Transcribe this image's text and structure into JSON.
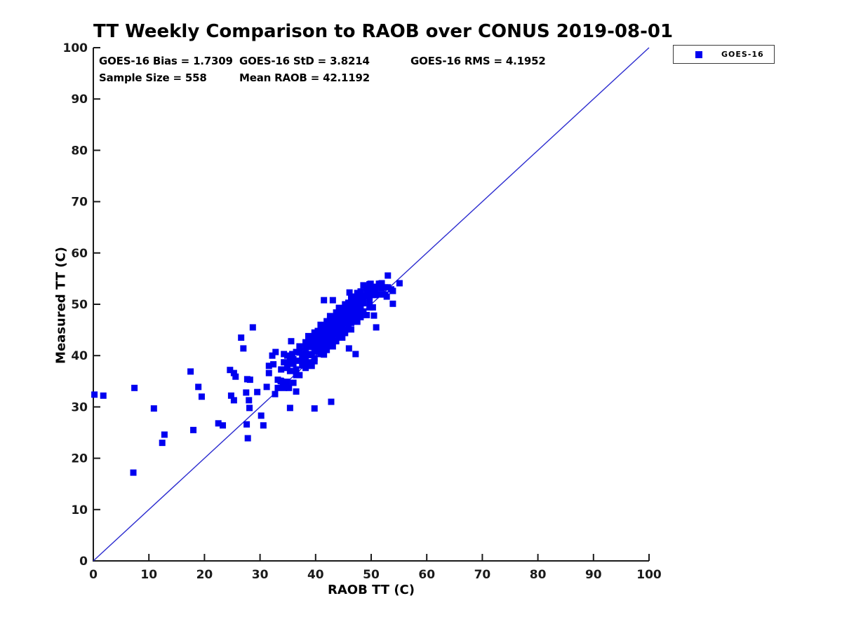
{
  "chart_data": {
    "type": "scatter",
    "title": "TT Weekly Comparison to RAOB over CONUS 2019-08-01",
    "xlabel": "RAOB TT (C)",
    "ylabel": "Measured TT (C)",
    "xlim": [
      0,
      100
    ],
    "ylim": [
      0,
      100
    ],
    "xticks": [
      0,
      10,
      20,
      30,
      40,
      50,
      60,
      70,
      80,
      90,
      100
    ],
    "yticks": [
      0,
      10,
      20,
      30,
      40,
      50,
      60,
      70,
      80,
      90,
      100
    ],
    "grid": false,
    "legend_position": "outside-top-right",
    "annotations": [
      "GOES-16 Bias = 1.7309",
      "GOES-16 StD = 3.8214",
      "GOES-16 RMS = 4.1952",
      "Sample Size = 558",
      "Mean RAOB = 42.1192"
    ],
    "stats": {
      "bias": 1.7309,
      "std": 3.8214,
      "rms": 4.1952,
      "sample_size": 558,
      "mean_raob": 42.1192
    },
    "identity_line": {
      "from": [
        0,
        0
      ],
      "to": [
        100,
        100
      ],
      "color": "#2B2BCF",
      "meaning": "1:1 reference line"
    },
    "axis_color": "#1a1a1a",
    "series": [
      {
        "name": "GOES-16",
        "marker": "square",
        "color": "#0000F0",
        "points": [
          [
            0.2,
            32.4
          ],
          [
            1.8,
            32.2
          ],
          [
            7.4,
            33.7
          ],
          [
            7.2,
            17.2
          ],
          [
            10.9,
            29.7
          ],
          [
            12.8,
            24.6
          ],
          [
            12.4,
            23.0
          ],
          [
            17.5,
            36.9
          ],
          [
            18.0,
            25.5
          ],
          [
            18.9,
            33.9
          ],
          [
            19.5,
            32.0
          ],
          [
            22.5,
            26.8
          ],
          [
            23.3,
            26.4
          ],
          [
            24.6,
            37.2
          ],
          [
            25.3,
            36.6
          ],
          [
            24.8,
            32.2
          ],
          [
            25.3,
            31.3
          ],
          [
            25.6,
            35.9
          ],
          [
            26.6,
            43.5
          ],
          [
            27.0,
            41.4
          ],
          [
            28.7,
            45.5
          ],
          [
            27.7,
            35.4
          ],
          [
            28.2,
            35.3
          ],
          [
            27.5,
            32.8
          ],
          [
            28.0,
            31.3
          ],
          [
            28.1,
            29.8
          ],
          [
            27.6,
            26.6
          ],
          [
            27.8,
            23.9
          ],
          [
            29.5,
            32.9
          ],
          [
            30.2,
            28.3
          ],
          [
            30.6,
            26.4
          ],
          [
            31.2,
            33.9
          ],
          [
            31.6,
            36.6
          ],
          [
            31.6,
            38.0
          ],
          [
            32.2,
            40.0
          ],
          [
            32.4,
            38.3
          ],
          [
            32.7,
            32.5
          ],
          [
            32.8,
            40.7
          ],
          [
            33.7,
            35.1
          ],
          [
            34.1,
            33.9
          ],
          [
            34.3,
            40.3
          ],
          [
            35.2,
            33.7
          ],
          [
            35.4,
            29.8
          ],
          [
            35.6,
            42.8
          ],
          [
            35.8,
            40.3
          ],
          [
            36.5,
            33.0
          ],
          [
            39.8,
            29.7
          ],
          [
            42.8,
            31.0
          ],
          [
            41.5,
            50.8
          ],
          [
            43.1,
            50.8
          ],
          [
            46.1,
            52.3
          ],
          [
            46.0,
            41.4
          ],
          [
            47.2,
            40.3
          ],
          [
            49.9,
            54.0
          ],
          [
            50.5,
            47.8
          ],
          [
            50.9,
            45.5
          ],
          [
            51.6,
            54.0
          ],
          [
            52.8,
            51.5
          ],
          [
            53.0,
            55.6
          ],
          [
            53.9,
            52.6
          ],
          [
            53.9,
            50.1
          ],
          [
            55.1,
            54.1
          ],
          [
            33.2,
            35.3
          ],
          [
            33.2,
            33.7
          ],
          [
            33.8,
            37.3
          ],
          [
            33.8,
            35.0
          ],
          [
            34.3,
            38.7
          ],
          [
            34.3,
            33.7
          ],
          [
            34.9,
            37.6
          ],
          [
            34.9,
            40.0
          ],
          [
            34.9,
            34.9
          ],
          [
            35.4,
            38.4
          ],
          [
            35.4,
            37.0
          ],
          [
            35.4,
            39.3
          ],
          [
            36.0,
            34.7
          ],
          [
            36.0,
            38.4
          ],
          [
            36.0,
            39.3
          ],
          [
            36.5,
            37.3
          ],
          [
            36.5,
            40.7
          ],
          [
            36.5,
            36.2
          ],
          [
            37.1,
            39.0
          ],
          [
            37.1,
            41.8
          ],
          [
            37.1,
            36.2
          ],
          [
            37.1,
            40.6
          ],
          [
            37.6,
            38.6
          ],
          [
            37.6,
            40.2
          ],
          [
            37.6,
            39.7
          ],
          [
            37.6,
            38.1
          ],
          [
            38.2,
            41.7
          ],
          [
            38.2,
            39.4
          ],
          [
            38.2,
            42.6
          ],
          [
            38.2,
            37.6
          ],
          [
            38.2,
            40.9
          ],
          [
            38.7,
            43.8
          ],
          [
            38.7,
            38.7
          ],
          [
            38.7,
            41.7
          ],
          [
            38.7,
            40.3
          ],
          [
            38.7,
            42.6
          ],
          [
            39.3,
            38.0
          ],
          [
            39.3,
            41.7
          ],
          [
            39.3,
            42.6
          ],
          [
            39.3,
            40.1
          ],
          [
            39.3,
            43.5
          ],
          [
            39.8,
            39.5
          ],
          [
            39.8,
            41.7
          ],
          [
            39.8,
            44.5
          ],
          [
            39.8,
            38.9
          ],
          [
            39.8,
            43.3
          ],
          [
            39.8,
            40.8
          ],
          [
            40.4,
            43.0
          ],
          [
            40.4,
            42.5
          ],
          [
            40.4,
            40.9
          ],
          [
            40.4,
            43.9
          ],
          [
            40.4,
            41.6
          ],
          [
            40.4,
            44.8
          ],
          [
            40.9,
            40.3
          ],
          [
            40.9,
            43.6
          ],
          [
            40.9,
            46.0
          ],
          [
            40.9,
            40.9
          ],
          [
            40.9,
            43.9
          ],
          [
            40.9,
            42.5
          ],
          [
            40.9,
            44.8
          ],
          [
            41.5,
            40.2
          ],
          [
            41.5,
            43.9
          ],
          [
            41.5,
            44.8
          ],
          [
            41.5,
            42.3
          ],
          [
            41.5,
            45.7
          ],
          [
            41.5,
            41.2
          ],
          [
            41.5,
            43.4
          ],
          [
            42.0,
            46.7
          ],
          [
            42.0,
            41.1
          ],
          [
            42.0,
            45.5
          ],
          [
            42.0,
            43.0
          ],
          [
            42.0,
            44.6
          ],
          [
            42.0,
            44.1
          ],
          [
            42.0,
            42.5
          ],
          [
            42.6,
            46.1
          ],
          [
            42.6,
            43.8
          ],
          [
            42.6,
            47.0
          ],
          [
            42.6,
            42.0
          ],
          [
            42.6,
            45.3
          ],
          [
            42.6,
            47.7
          ],
          [
            42.6,
            42.6
          ],
          [
            42.6,
            45.6
          ],
          [
            43.1,
            44.7
          ],
          [
            43.1,
            47.0
          ],
          [
            43.1,
            41.8
          ],
          [
            43.1,
            45.5
          ],
          [
            43.1,
            46.4
          ],
          [
            43.1,
            43.9
          ],
          [
            43.1,
            47.3
          ],
          [
            43.1,
            42.8
          ],
          [
            43.7,
            45.6
          ],
          [
            43.7,
            48.4
          ],
          [
            43.7,
            42.8
          ],
          [
            43.7,
            47.2
          ],
          [
            43.7,
            44.7
          ],
          [
            43.7,
            46.3
          ],
          [
            43.7,
            45.8
          ],
          [
            43.7,
            44.2
          ],
          [
            44.2,
            47.7
          ],
          [
            44.2,
            45.4
          ],
          [
            44.2,
            48.6
          ],
          [
            44.2,
            43.6
          ],
          [
            44.2,
            46.9
          ],
          [
            44.2,
            49.3
          ],
          [
            44.2,
            44.2
          ],
          [
            44.2,
            47.2
          ],
          [
            44.8,
            46.4
          ],
          [
            44.8,
            48.7
          ],
          [
            44.8,
            43.5
          ],
          [
            44.8,
            47.2
          ],
          [
            44.8,
            48.1
          ],
          [
            44.8,
            45.6
          ],
          [
            44.8,
            49.0
          ],
          [
            45.3,
            45.0
          ],
          [
            45.3,
            47.2
          ],
          [
            45.3,
            50.0
          ],
          [
            45.3,
            44.4
          ],
          [
            45.3,
            48.8
          ],
          [
            45.3,
            46.3
          ],
          [
            45.3,
            47.9
          ],
          [
            45.9,
            48.0
          ],
          [
            45.9,
            46.4
          ],
          [
            45.9,
            49.4
          ],
          [
            45.9,
            47.1
          ],
          [
            45.9,
            50.3
          ],
          [
            45.9,
            45.3
          ],
          [
            45.9,
            48.6
          ],
          [
            46.4,
            51.5
          ],
          [
            46.4,
            46.4
          ],
          [
            46.4,
            49.4
          ],
          [
            46.4,
            48.0
          ],
          [
            46.4,
            50.3
          ],
          [
            46.4,
            45.1
          ],
          [
            47.0,
            49.4
          ],
          [
            47.0,
            50.3
          ],
          [
            47.0,
            47.8
          ],
          [
            47.0,
            51.2
          ],
          [
            47.0,
            46.7
          ],
          [
            47.0,
            48.9
          ],
          [
            47.5,
            52.2
          ],
          [
            47.5,
            46.6
          ],
          [
            47.5,
            51.0
          ],
          [
            47.5,
            48.5
          ],
          [
            47.5,
            50.1
          ],
          [
            47.5,
            49.6
          ],
          [
            48.1,
            48.6
          ],
          [
            48.1,
            51.6
          ],
          [
            48.1,
            49.3
          ],
          [
            48.1,
            52.5
          ],
          [
            48.1,
            47.5
          ],
          [
            48.6,
            51.3
          ],
          [
            48.6,
            53.7
          ],
          [
            48.6,
            48.6
          ],
          [
            48.6,
            51.6
          ],
          [
            48.6,
            50.2
          ],
          [
            49.2,
            53.1
          ],
          [
            49.2,
            47.9
          ],
          [
            49.2,
            51.6
          ],
          [
            49.2,
            52.5
          ],
          [
            49.7,
            50.5
          ],
          [
            49.7,
            53.9
          ],
          [
            49.7,
            49.4
          ],
          [
            49.7,
            51.6
          ],
          [
            50.3,
            53.4
          ],
          [
            50.3,
            49.4
          ],
          [
            50.3,
            52.6
          ],
          [
            50.8,
            51.8
          ],
          [
            50.8,
            53.4
          ],
          [
            50.8,
            52.9
          ],
          [
            51.4,
            51.9
          ],
          [
            51.4,
            54.0
          ],
          [
            51.9,
            53.1
          ],
          [
            51.9,
            54.1
          ],
          [
            52.5,
            51.9
          ],
          [
            52.5,
            53.3
          ],
          [
            53.0,
            53.3
          ],
          [
            53.6,
            52.9
          ]
        ]
      }
    ]
  }
}
